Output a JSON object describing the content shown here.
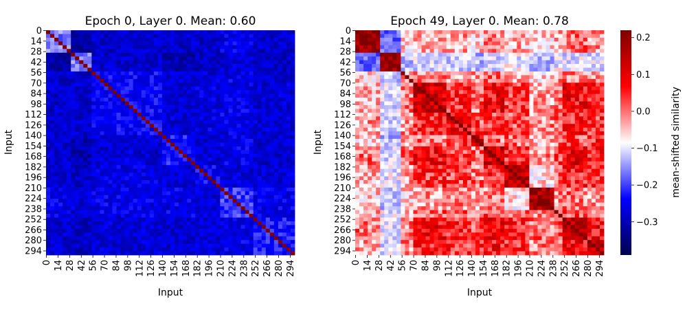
{
  "chart_data": [
    {
      "type": "heatmap",
      "title": "Epoch 0, Layer 0. Mean: 0.60",
      "xlabel": "Input",
      "ylabel": "Input",
      "size": 300,
      "ticks": [
        0,
        14,
        28,
        42,
        56,
        70,
        84,
        98,
        112,
        126,
        140,
        154,
        168,
        182,
        196,
        210,
        224,
        238,
        252,
        266,
        280,
        294
      ],
      "blocks": [
        [
          0,
          28
        ],
        [
          28,
          56
        ],
        [
          56,
          140
        ],
        [
          140,
          182
        ],
        [
          182,
          210
        ],
        [
          210,
          252
        ],
        [
          252,
          300
        ]
      ],
      "block_matrix": [
        [
          -0.1,
          -0.3,
          -0.25,
          -0.25,
          -0.25,
          -0.22,
          -0.25
        ],
        [
          -0.3,
          -0.1,
          -0.25,
          -0.28,
          -0.26,
          -0.24,
          -0.26
        ],
        [
          -0.25,
          -0.25,
          -0.2,
          -0.24,
          -0.23,
          -0.22,
          -0.24
        ],
        [
          -0.25,
          -0.28,
          -0.24,
          -0.18,
          -0.24,
          -0.22,
          -0.25
        ],
        [
          -0.25,
          -0.26,
          -0.23,
          -0.24,
          -0.2,
          -0.24,
          -0.24
        ],
        [
          -0.22,
          -0.24,
          -0.22,
          -0.22,
          -0.24,
          -0.15,
          -0.22
        ],
        [
          -0.25,
          -0.26,
          -0.24,
          -0.25,
          -0.24,
          -0.22,
          -0.18
        ]
      ],
      "diagonal_value": 0.22
    },
    {
      "type": "heatmap",
      "title": "Epoch 49, Layer 0. Mean: 0.78",
      "xlabel": "Input",
      "ylabel": "Input",
      "size": 300,
      "ticks": [
        0,
        14,
        28,
        42,
        56,
        70,
        84,
        98,
        112,
        126,
        140,
        154,
        168,
        182,
        196,
        210,
        224,
        238,
        252,
        266,
        280,
        294
      ],
      "blocks": [
        [
          0,
          28
        ],
        [
          28,
          56
        ],
        [
          56,
          70
        ],
        [
          70,
          112
        ],
        [
          112,
          140
        ],
        [
          140,
          154
        ],
        [
          154,
          182
        ],
        [
          182,
          210
        ],
        [
          210,
          238
        ],
        [
          238,
          252
        ],
        [
          252,
          280
        ],
        [
          280,
          300
        ]
      ],
      "block_matrix": [
        [
          0.2,
          -0.12,
          0.02,
          0.03,
          0.04,
          0.02,
          0.06,
          0.03,
          0.02,
          0.03,
          0.06,
          0.04
        ],
        [
          -0.12,
          0.2,
          -0.05,
          -0.03,
          -0.04,
          -0.06,
          -0.03,
          -0.02,
          -0.06,
          -0.02,
          -0.03,
          -0.03
        ],
        [
          0.02,
          -0.05,
          0.05,
          0.06,
          0.05,
          0.04,
          0.06,
          0.04,
          0.02,
          0.04,
          0.06,
          0.05
        ],
        [
          0.03,
          -0.03,
          0.06,
          0.15,
          0.1,
          0.06,
          0.12,
          0.09,
          0.04,
          0.07,
          0.12,
          0.1
        ],
        [
          0.04,
          -0.04,
          0.05,
          0.1,
          0.13,
          0.08,
          0.09,
          0.08,
          0.05,
          0.07,
          0.1,
          0.09
        ],
        [
          0.02,
          -0.06,
          0.04,
          0.06,
          0.08,
          0.14,
          0.06,
          0.06,
          0.03,
          0.06,
          0.08,
          0.1
        ],
        [
          0.06,
          -0.03,
          0.06,
          0.12,
          0.09,
          0.06,
          0.15,
          0.1,
          0.05,
          0.08,
          0.13,
          0.11
        ],
        [
          0.03,
          -0.02,
          0.04,
          0.09,
          0.08,
          0.06,
          0.1,
          0.16,
          0.01,
          0.07,
          0.1,
          0.09
        ],
        [
          0.02,
          -0.06,
          0.02,
          0.04,
          0.05,
          0.03,
          0.05,
          0.01,
          0.19,
          0.05,
          0.06,
          0.05
        ],
        [
          0.03,
          -0.02,
          0.04,
          0.07,
          0.07,
          0.06,
          0.08,
          0.07,
          0.05,
          0.08,
          0.08,
          0.07
        ],
        [
          0.06,
          -0.03,
          0.06,
          0.12,
          0.1,
          0.08,
          0.13,
          0.1,
          0.06,
          0.08,
          0.16,
          0.12
        ],
        [
          0.04,
          -0.03,
          0.05,
          0.1,
          0.09,
          0.1,
          0.11,
          0.09,
          0.05,
          0.07,
          0.12,
          0.15
        ]
      ],
      "diagonal_value": 0.22
    }
  ],
  "colorbar": {
    "label": "mean-shifted similarity",
    "vmin": -0.39,
    "vmax": 0.22,
    "ticks": [
      0.2,
      0.1,
      0.0,
      -0.1,
      -0.2,
      -0.3
    ],
    "tick_labels": [
      "0.2",
      "0.1",
      "0.0",
      "−0.1",
      "−0.2",
      "−0.3"
    ],
    "colormap": "seismic",
    "colors": [
      "#00004c",
      "#0000ff",
      "#ffffff",
      "#ff0000",
      "#7f0000"
    ]
  }
}
